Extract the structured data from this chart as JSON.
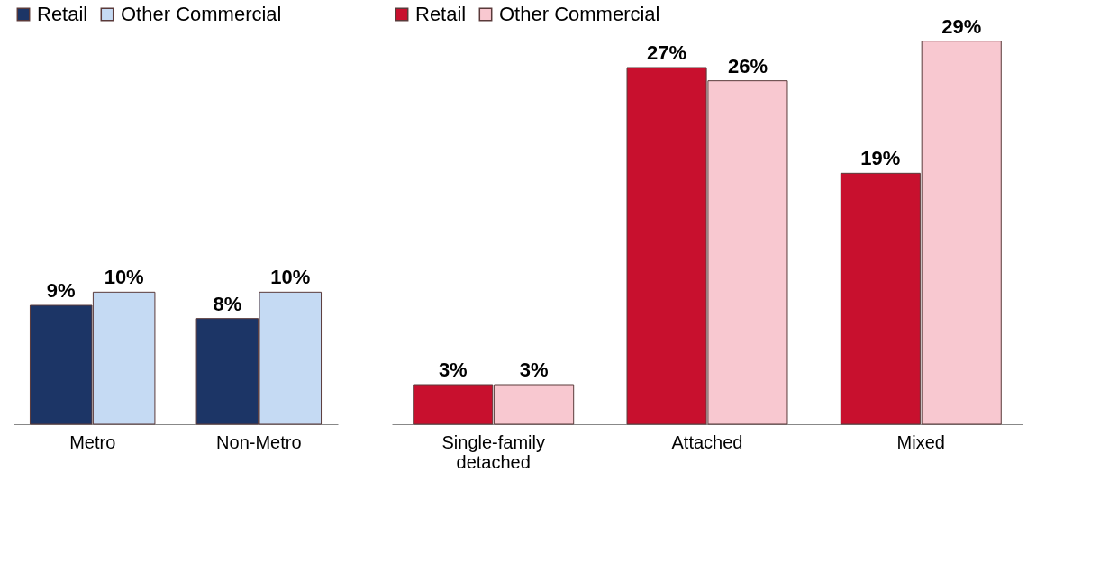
{
  "chart_data": [
    {
      "type": "bar",
      "categories": [
        "Metro",
        "Non-Metro"
      ],
      "legend": "top left",
      "tick_labels": "x",
      "series": [
        {
          "name": "Retail",
          "color": "#1c3566",
          "values": [
            9,
            8
          ],
          "value_labels": [
            "9%",
            "8%"
          ]
        },
        {
          "name": "Other Commercial",
          "color": "#c5daf3",
          "values": [
            10,
            10
          ],
          "value_labels": [
            "10%",
            "10%"
          ]
        }
      ]
    },
    {
      "type": "bar",
      "categories": [
        "Single-family detached",
        "Attached",
        "Mixed"
      ],
      "legend": "top left",
      "tick_labels": "x",
      "series": [
        {
          "name": "Retail",
          "color": "#c8102e",
          "values": [
            3,
            27,
            19
          ],
          "value_labels": [
            "3%",
            "27%",
            "19%"
          ]
        },
        {
          "name": "Other Commercial",
          "color": "#f8c8d0",
          "values": [
            3,
            26,
            29
          ],
          "value_labels": [
            "3%",
            "26%",
            "29%"
          ]
        }
      ]
    }
  ]
}
